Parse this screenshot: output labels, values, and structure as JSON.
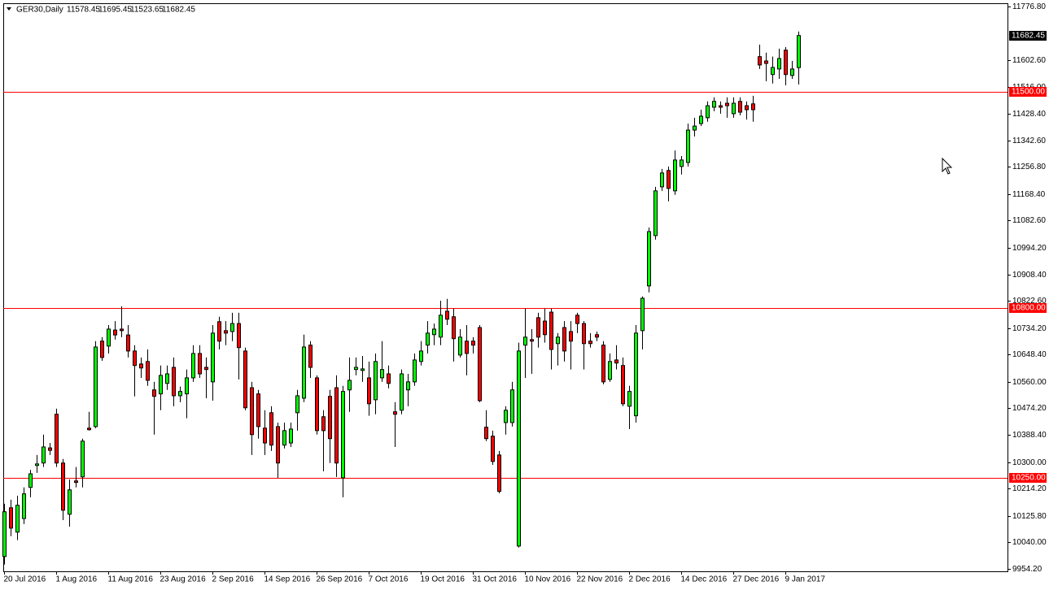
{
  "chart_data": {
    "type": "candlestick",
    "title": "GER30,Daily",
    "categories": [
      "20 Jul 2016",
      null,
      null,
      null,
      null,
      null,
      null,
      null,
      "1 Aug 2016",
      null,
      null,
      null,
      null,
      null,
      null,
      null,
      "11 Aug 2016",
      null,
      null,
      null,
      null,
      null,
      null,
      null,
      "23 Aug 2016",
      null,
      null,
      null,
      null,
      null,
      null,
      null,
      "2 Sep 2016",
      null,
      null,
      null,
      null,
      null,
      null,
      null,
      "14 Sep 2016",
      null,
      null,
      null,
      null,
      null,
      null,
      null,
      "26 Sep 2016",
      null,
      null,
      null,
      null,
      null,
      null,
      null,
      "7 Oct 2016",
      null,
      null,
      null,
      null,
      null,
      null,
      null,
      "19 Oct 2016",
      null,
      null,
      null,
      null,
      null,
      null,
      null,
      "31 Oct 2016",
      null,
      null,
      null,
      null,
      null,
      null,
      null,
      "10 Nov 2016",
      null,
      null,
      null,
      null,
      null,
      null,
      null,
      "22 Nov 2016",
      null,
      null,
      null,
      null,
      null,
      null,
      null,
      "2 Dec 2016",
      null,
      null,
      null,
      null,
      null,
      null,
      null,
      "14 Dec 2016",
      null,
      null,
      null,
      null,
      null,
      null,
      null,
      "27 Dec 2016",
      null,
      null,
      null,
      null,
      null,
      null,
      null,
      "9 Jan 2017",
      null,
      null
    ],
    "open": [
      9994,
      10152,
      10073,
      10117,
      10218,
      10289,
      10297,
      10346,
      10455,
      10297,
      10131,
      10239,
      10252,
      10410,
      10415,
      10692,
      10676,
      10728,
      10731,
      10712,
      10660,
      10618,
      10626,
      10534,
      10521,
      10555,
      10607,
      10515,
      10521,
      10573,
      10652,
      10607,
      10560,
      10755,
      10726,
      10723,
      10749,
      10660,
      10541,
      10521,
      10410,
      10460,
      10415,
      10355,
      10362,
      10460,
      10507,
      10679,
      10573,
      10447,
      10513,
      10541,
      10249,
      10534,
      10600,
      10597,
      10573,
      10502,
      10573,
      10586,
      10463,
      10468,
      10534,
      10560,
      10626,
      10679,
      10713,
      10705,
      10789,
      10771,
      10647,
      10692,
      10692,
      10736,
      10413,
      10384,
      10323,
      10428,
      10428,
      10028,
      10679,
      10697,
      10768,
      10757,
      10786,
      10684,
      10736,
      10723,
      10776,
      10749,
      10692,
      10713,
      10679,
      10568,
      10631,
      10613,
      10481,
      10450,
      10726,
      10871,
      11034,
      11192,
      11245,
      11179,
      11258,
      11271,
      11376,
      11397,
      11416,
      11450,
      11455,
      11463,
      11429,
      11469,
      11455,
      11461,
      11614,
      11600,
      11556,
      11574,
      11635,
      11553,
      11578.45
    ],
    "high": [
      10165,
      10178,
      10191,
      10218,
      10275,
      10323,
      10389,
      10362,
      10473,
      10310,
      10244,
      10284,
      10376,
      10463,
      10692,
      10705,
      10744,
      10757,
      10805,
      10744,
      10679,
      10639,
      10665,
      10560,
      10613,
      10613,
      10639,
      10545,
      10600,
      10679,
      10679,
      10639,
      10744,
      10771,
      10757,
      10784,
      10784,
      10671,
      10560,
      10534,
      10468,
      10481,
      10428,
      10428,
      10428,
      10534,
      10713,
      10692,
      10581,
      10468,
      10534,
      10581,
      10547,
      10639,
      10639,
      10644,
      10626,
      10652,
      10692,
      10613,
      10494,
      10600,
      10586,
      10652,
      10692,
      10757,
      10749,
      10823,
      10829,
      10797,
      10731,
      10744,
      10705,
      10744,
      10468,
      10402,
      10336,
      10481,
      10560,
      10687,
      10797,
      10731,
      10784,
      10797,
      10797,
      10718,
      10757,
      10757,
      10784,
      10757,
      10718,
      10723,
      10692,
      10652,
      10679,
      10639,
      10547,
      10744,
      10837,
      11060,
      11192,
      11250,
      11258,
      11310,
      11292,
      11397,
      11416,
      11442,
      11469,
      11482,
      11469,
      11482,
      11482,
      11482,
      11469,
      11487,
      11653,
      11627,
      11614,
      11640,
      11645,
      11600,
      11695.45
    ],
    "low": [
      9968,
      10060,
      10047,
      10099,
      10186,
      10265,
      10284,
      10323,
      10284,
      10112,
      10091,
      10218,
      10218,
      10402,
      10410,
      10628,
      10652,
      10697,
      10705,
      10639,
      10513,
      10573,
      10547,
      10389,
      10468,
      10534,
      10481,
      10494,
      10442,
      10560,
      10573,
      10507,
      10499,
      10665,
      10679,
      10692,
      10568,
      10468,
      10323,
      10376,
      10323,
      10336,
      10249,
      10344,
      10349,
      10402,
      10494,
      10573,
      10389,
      10270,
      10297,
      10252,
      10186,
      10463,
      10581,
      10560,
      10450,
      10455,
      10560,
      10539,
      10349,
      10455,
      10481,
      10547,
      10613,
      10652,
      10679,
      10679,
      10744,
      10626,
      10639,
      10581,
      10652,
      10494,
      10368,
      10291,
      10199,
      10389,
      10415,
      10023,
      10573,
      10586,
      10671,
      10687,
      10600,
      10613,
      10626,
      10600,
      10718,
      10600,
      10671,
      10692,
      10552,
      10560,
      10600,
      10481,
      10407,
      10428,
      10665,
      10850,
      11021,
      11179,
      11145,
      11166,
      11232,
      11258,
      11355,
      11389,
      11403,
      11437,
      11429,
      11416,
      11416,
      11424,
      11410,
      11403,
      11574,
      11534,
      11527,
      11542,
      11521,
      11542,
      11523.65
    ],
    "close": [
      10139,
      10086,
      10160,
      10197,
      10262,
      10294,
      10349,
      10338,
      10297,
      10144,
      10210,
      10234,
      10368,
      10405,
      10673,
      10639,
      10731,
      10712,
      10726,
      10660,
      10613,
      10605,
      10565,
      10513,
      10581,
      10586,
      10515,
      10529,
      10573,
      10652,
      10586,
      10600,
      10718,
      10692,
      10718,
      10749,
      10671,
      10476,
      10389,
      10415,
      10362,
      10355,
      10297,
      10402,
      10407,
      10515,
      10673,
      10607,
      10402,
      10402,
      10376,
      10297,
      10529,
      10565,
      10607,
      10602,
      10489,
      10626,
      10600,
      10555,
      10455,
      10586,
      10560,
      10631,
      10660,
      10718,
      10731,
      10776,
      10763,
      10700,
      10705,
      10652,
      10679,
      10499,
      10376,
      10302,
      10205,
      10468,
      10534,
      10660,
      10705,
      10692,
      10705,
      10713,
      10665,
      10705,
      10660,
      10692,
      10749,
      10684,
      10684,
      10705,
      10560,
      10626,
      10621,
      10489,
      10529,
      10718,
      10831,
      11047,
      11179,
      11237,
      11187,
      11279,
      11279,
      11376,
      11389,
      11421,
      11455,
      11469,
      11450,
      11455,
      11463,
      11434,
      11442,
      11442,
      11587,
      11592,
      11579,
      11608,
      11556,
      11574,
      11682.45
    ],
    "up_color": "#00ff00",
    "down_color": "#ff0000",
    "hline_color": "#ff0000",
    "hlines": [
      {
        "value": 11500,
        "label": "11500.00"
      },
      {
        "value": 10800,
        "label": "10800.00"
      },
      {
        "value": 10250,
        "label": "10250.00"
      }
    ],
    "ylim": [
      9946,
      11787
    ],
    "yticks": [
      {
        "value": 11776.8,
        "label": "11776.80"
      },
      {
        "value": 11602.6,
        "label": "11602.60"
      },
      {
        "value": 11516,
        "label": "11516.00"
      },
      {
        "value": 11428.4,
        "label": "11428.40"
      },
      {
        "value": 11342.6,
        "label": "11342.60"
      },
      {
        "value": 11256.8,
        "label": "11256.80"
      },
      {
        "value": 11168.4,
        "label": "11168.40"
      },
      {
        "value": 11082.6,
        "label": "11082.60"
      },
      {
        "value": 10994.2,
        "label": "10994.20"
      },
      {
        "value": 10908.4,
        "label": "10908.40"
      },
      {
        "value": 10822.6,
        "label": "10822.60"
      },
      {
        "value": 10734.2,
        "label": "10734.20"
      },
      {
        "value": 10648.4,
        "label": "10648.40"
      },
      {
        "value": 10560,
        "label": "10560.00"
      },
      {
        "value": 10474.2,
        "label": "10474.20"
      },
      {
        "value": 10388.4,
        "label": "10388.40"
      },
      {
        "value": 10300,
        "label": "10300.00"
      },
      {
        "value": 10214.2,
        "label": "10214.20"
      },
      {
        "value": 10125.8,
        "label": "10125.80"
      },
      {
        "value": 10040,
        "label": "10040.00"
      },
      {
        "value": 9954.2,
        "label": "9954.20"
      }
    ]
  }
}
